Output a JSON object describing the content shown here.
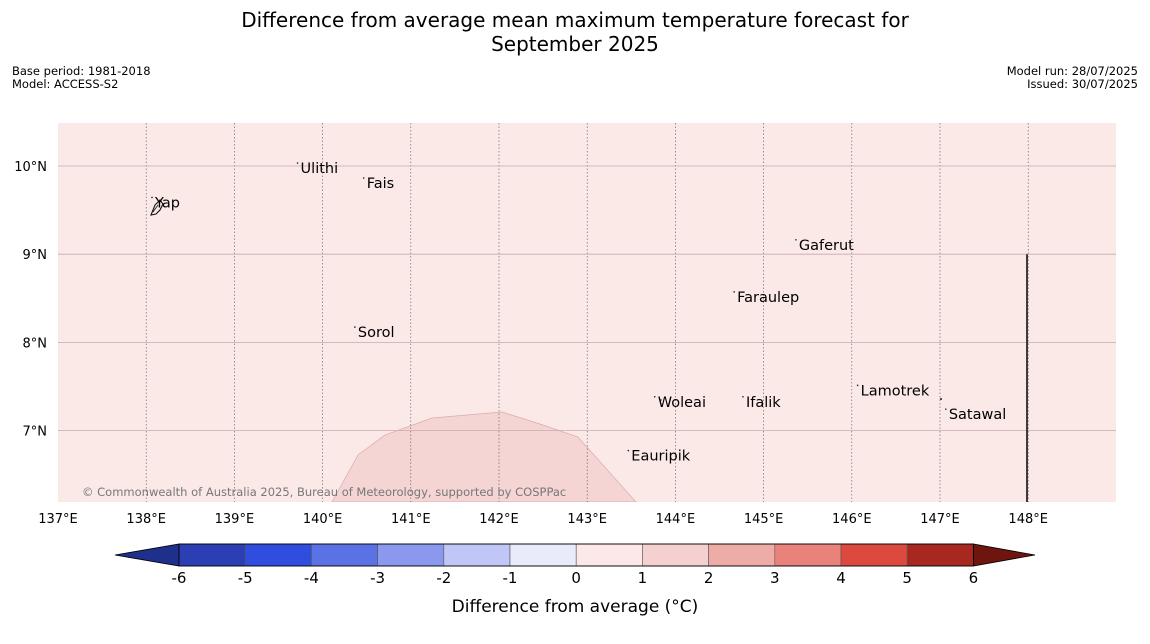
{
  "title_line1": "Difference from average mean maximum temperature forecast for",
  "title_line2": "September 2025",
  "meta_left": {
    "base_period": "Base period: 1981-2018",
    "model": "Model: ACCESS-S2"
  },
  "meta_right": {
    "model_run": "Model run: 28/07/2025",
    "issued": "Issued: 30/07/2025"
  },
  "map": {
    "lon_ticks": [
      "137°E",
      "138°E",
      "139°E",
      "140°E",
      "141°E",
      "142°E",
      "143°E",
      "144°E",
      "145°E",
      "146°E",
      "147°E",
      "148°E"
    ],
    "lat_ticks": [
      "10°N",
      "9°N",
      "8°N",
      "7°N"
    ],
    "places": [
      {
        "name": "Ulithi",
        "lon": 139.75,
        "lat": 9.92
      },
      {
        "name": "Fais",
        "lon": 140.5,
        "lat": 9.75
      },
      {
        "name": "Yap",
        "lon": 138.1,
        "lat": 9.53
      },
      {
        "name": "Gaferut",
        "lon": 145.4,
        "lat": 9.05
      },
      {
        "name": "Faraulep",
        "lon": 144.7,
        "lat": 8.46
      },
      {
        "name": "Sorol",
        "lon": 140.4,
        "lat": 8.06
      },
      {
        "name": "Lamotrek",
        "lon": 146.1,
        "lat": 7.4
      },
      {
        "name": "Woleai",
        "lon": 143.8,
        "lat": 7.27
      },
      {
        "name": "Ifalik",
        "lon": 144.8,
        "lat": 7.27
      },
      {
        "name": "Satawal",
        "lon": 147.1,
        "lat": 7.13
      },
      {
        "name": "Eauripik",
        "lon": 143.5,
        "lat": 6.66
      }
    ],
    "copyright": "© Commonwealth of Australia 2025, Bureau of Meteorology, supported by COSPPac",
    "background_color": "#fbe9e8",
    "anomaly_patch_color": "#f5d4d4",
    "anomaly_patch_category": "1 to 2"
  },
  "colorbar": {
    "label": "Difference from average (°C)",
    "ticks": [
      "-6",
      "-5",
      "-4",
      "-3",
      "-2",
      "-1",
      "0",
      "1",
      "2",
      "3",
      "4",
      "5",
      "6"
    ],
    "colors": [
      "#1e2f8c",
      "#2b3eb3",
      "#2f4ee0",
      "#5b72e6",
      "#8a98ee",
      "#c0c6f5",
      "#e9ebfb",
      "#fde8e8",
      "#f5d0d0",
      "#eeaca6",
      "#e8827a",
      "#dc4a3f",
      "#a8271f",
      "#6e1510"
    ]
  }
}
